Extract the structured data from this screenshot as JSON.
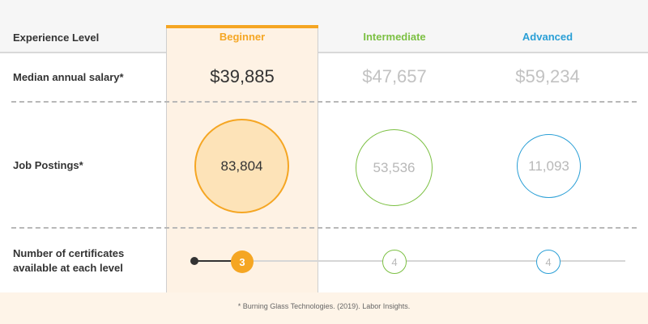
{
  "header": {
    "row_header": "Experience Level",
    "levels": [
      "Beginner",
      "Intermediate",
      "Advanced"
    ]
  },
  "rows": {
    "salary_label": "Median annual salary*",
    "postings_label": "Job Postings*",
    "certs_label_line1": "Number of certificates",
    "certs_label_line2": "available at each level"
  },
  "salaries": [
    "$39,885",
    "$47,657",
    "$59,234"
  ],
  "job_postings": [
    "83,804",
    "53,536",
    "11,093"
  ],
  "certificates": [
    "3",
    "4",
    "4"
  ],
  "footnote": "* Burning Glass Technologies. (2019). Labor Insights.",
  "colors": {
    "beginner": "#f5a623",
    "intermediate": "#7cc043",
    "advanced": "#2a9fd6",
    "muted_text": "#c2c2c2",
    "highlight_bg": "#fef2e4"
  }
}
